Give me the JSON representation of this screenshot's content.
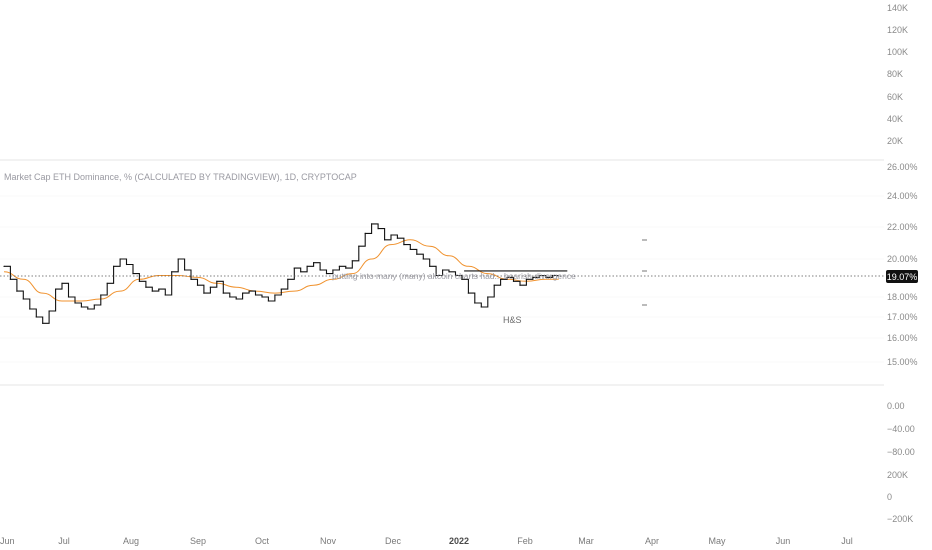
{
  "chart_data": {
    "type": "line",
    "title": "Market Cap ETH Dominance, % (CALCULATED BY TRADINGVIEW), 1D, CRYPTOCAP",
    "current_value_label": "19.07%",
    "annotation": "putting into many (many) altcoin charts had... bearish divergence",
    "pattern_label": "H&S",
    "x_ticks": [
      "Jun",
      "Jul",
      "Aug",
      "Sep",
      "Oct",
      "Nov",
      "Dec",
      "2022",
      "Feb",
      "Mar",
      "Apr",
      "May",
      "Jun",
      "Jul"
    ],
    "y_ticks_top_pane": [
      "140K",
      "120K",
      "100K",
      "80K",
      "60K",
      "40K",
      "20K"
    ],
    "y_ticks_main_pane": [
      "26.00%",
      "24.00%",
      "22.00%",
      "20.00%",
      "18.00%",
      "17.00%",
      "16.00%",
      "15.00%"
    ],
    "y_ticks_bottom_pane": [
      "0.00",
      "−40.00",
      "−80.00",
      "200K",
      "0",
      "−200K"
    ],
    "series": [
      {
        "name": "ETH Dominance",
        "x": [
          "2021-06-01",
          "2021-06-04",
          "2021-06-07",
          "2021-06-10",
          "2021-06-13",
          "2021-06-16",
          "2021-06-19",
          "2021-06-22",
          "2021-06-25",
          "2021-06-28",
          "2021-07-01",
          "2021-07-04",
          "2021-07-07",
          "2021-07-10",
          "2021-07-13",
          "2021-07-16",
          "2021-07-19",
          "2021-07-22",
          "2021-07-25",
          "2021-07-28",
          "2021-07-31",
          "2021-08-03",
          "2021-08-06",
          "2021-08-09",
          "2021-08-12",
          "2021-08-15",
          "2021-08-18",
          "2021-08-21",
          "2021-08-24",
          "2021-08-27",
          "2021-08-30",
          "2021-09-02",
          "2021-09-05",
          "2021-09-08",
          "2021-09-11",
          "2021-09-14",
          "2021-09-17",
          "2021-09-20",
          "2021-09-23",
          "2021-09-26",
          "2021-09-29",
          "2021-10-02",
          "2021-10-05",
          "2021-10-08",
          "2021-10-11",
          "2021-10-14",
          "2021-10-17",
          "2021-10-20",
          "2021-10-23",
          "2021-10-26",
          "2021-10-29",
          "2021-11-01",
          "2021-11-04",
          "2021-11-07",
          "2021-11-10",
          "2021-11-13",
          "2021-11-16",
          "2021-11-19",
          "2021-11-22",
          "2021-11-25",
          "2021-11-28",
          "2021-12-01",
          "2021-12-04",
          "2021-12-07",
          "2021-12-10",
          "2021-12-13",
          "2021-12-16",
          "2021-12-19",
          "2021-12-22",
          "2021-12-25",
          "2021-12-28",
          "2021-12-31",
          "2022-01-03",
          "2022-01-06",
          "2022-01-09",
          "2022-01-12",
          "2022-01-15",
          "2022-01-18",
          "2022-01-21",
          "2022-01-24",
          "2022-01-27",
          "2022-01-30",
          "2022-02-02",
          "2022-02-05",
          "2022-02-08",
          "2022-02-11",
          "2022-02-14"
        ],
        "values": [
          19.6,
          18.9,
          18.3,
          17.9,
          17.4,
          17.0,
          16.7,
          17.3,
          18.4,
          18.7,
          18.0,
          17.7,
          17.5,
          17.4,
          17.6,
          18.1,
          18.7,
          19.6,
          20.0,
          19.7,
          19.2,
          18.8,
          18.5,
          18.3,
          18.4,
          18.1,
          19.3,
          20.0,
          19.4,
          18.9,
          18.6,
          18.2,
          18.5,
          18.8,
          18.2,
          18.0,
          17.9,
          18.2,
          18.3,
          18.1,
          18.0,
          17.8,
          18.1,
          18.4,
          18.9,
          19.5,
          19.3,
          19.6,
          19.8,
          19.4,
          19.2,
          19.4,
          19.6,
          19.5,
          19.9,
          20.8,
          21.6,
          22.2,
          21.9,
          21.2,
          21.5,
          21.3,
          20.9,
          20.6,
          20.3,
          20.0,
          19.6,
          19.1,
          19.4,
          19.3,
          19.1,
          18.9,
          18.2,
          17.7,
          17.5,
          18.0,
          18.6,
          18.9,
          19.0,
          18.8,
          18.6,
          18.9,
          19.0,
          19.1,
          19.0,
          19.1,
          19.1
        ]
      },
      {
        "name": "Moving average",
        "x": [
          "2021-06-01",
          "2021-06-10",
          "2021-06-19",
          "2021-06-28",
          "2021-07-07",
          "2021-07-16",
          "2021-07-25",
          "2021-08-03",
          "2021-08-12",
          "2021-08-21",
          "2021-08-30",
          "2021-09-08",
          "2021-09-17",
          "2021-09-26",
          "2021-10-05",
          "2021-10-14",
          "2021-10-23",
          "2021-11-01",
          "2021-11-10",
          "2021-11-19",
          "2021-11-28",
          "2021-12-07",
          "2021-12-16",
          "2021-12-25",
          "2022-01-03",
          "2022-01-12",
          "2022-01-21",
          "2022-01-30",
          "2022-02-08",
          "2022-02-14"
        ],
        "values": [
          19.3,
          18.9,
          18.2,
          17.8,
          17.8,
          17.9,
          18.3,
          18.9,
          19.1,
          19.1,
          19.0,
          18.7,
          18.5,
          18.3,
          18.2,
          18.3,
          18.6,
          18.9,
          19.2,
          20.0,
          20.9,
          21.2,
          20.8,
          20.2,
          19.6,
          19.2,
          18.9,
          18.8,
          18.9,
          18.9
        ]
      }
    ],
    "resistance_line": {
      "from": "2022-01-01",
      "to": "2022-02-18",
      "value": 19.35
    },
    "current_value": 19.07,
    "colors": {
      "price": "#111111",
      "moving_average": "#f0922e",
      "grid": "#f2f2f2",
      "dotted_line": "#555555",
      "label_bg": "#111111",
      "axis_text": "#8a8a8a"
    }
  }
}
